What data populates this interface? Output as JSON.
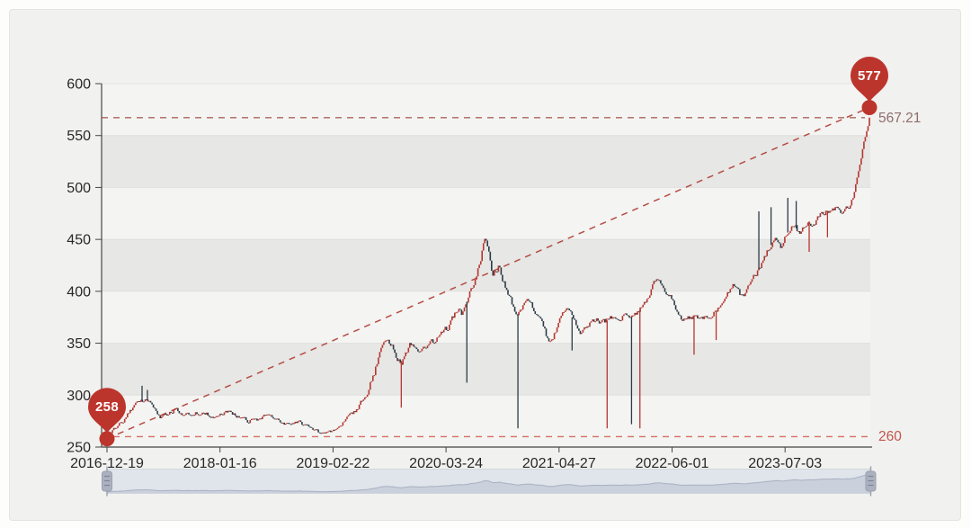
{
  "chart_data": {
    "type": "candlestick",
    "title": "",
    "xlabel": "",
    "ylabel": "",
    "x_ticks": [
      "2016-12-19",
      "2018-01-16",
      "2019-02-22",
      "2020-03-24",
      "2021-04-27",
      "2022-06-01",
      "2023-07-03"
    ],
    "y_ticks": [
      250,
      300,
      350,
      400,
      450,
      500,
      550,
      600
    ],
    "ylim": [
      250,
      600
    ],
    "grid": "split-bands",
    "legend": "none",
    "min_marker": {
      "label": "258",
      "value": 258,
      "pos": 0
    },
    "max_marker": {
      "label": "577",
      "value": 577,
      "pos": 1
    },
    "upper_line": {
      "value": 567.21,
      "label": "567.21"
    },
    "lower_line": {
      "value": 260,
      "label": "260"
    },
    "trend_line": {
      "from_pos": 0,
      "from_value": 258,
      "to_pos": 1,
      "to_value": 577
    },
    "keypoints": [
      [
        0.0,
        258
      ],
      [
        0.004,
        263
      ],
      [
        0.01,
        268
      ],
      [
        0.02,
        275
      ],
      [
        0.032,
        286
      ],
      [
        0.045,
        294
      ],
      [
        0.052,
        297
      ],
      [
        0.06,
        288
      ],
      [
        0.07,
        277
      ],
      [
        0.08,
        282
      ],
      [
        0.09,
        286
      ],
      [
        0.1,
        279
      ],
      [
        0.112,
        284
      ],
      [
        0.125,
        283
      ],
      [
        0.14,
        280
      ],
      [
        0.148,
        281
      ],
      [
        0.16,
        284
      ],
      [
        0.172,
        279
      ],
      [
        0.185,
        275
      ],
      [
        0.2,
        277
      ],
      [
        0.212,
        281
      ],
      [
        0.225,
        274
      ],
      [
        0.24,
        272
      ],
      [
        0.252,
        275
      ],
      [
        0.262,
        269
      ],
      [
        0.272,
        265
      ],
      [
        0.283,
        262
      ],
      [
        0.292,
        264
      ],
      [
        0.297,
        267
      ],
      [
        0.308,
        272
      ],
      [
        0.318,
        278
      ],
      [
        0.33,
        290
      ],
      [
        0.342,
        305
      ],
      [
        0.352,
        325
      ],
      [
        0.362,
        352
      ],
      [
        0.368,
        358
      ],
      [
        0.374,
        348
      ],
      [
        0.38,
        338
      ],
      [
        0.386,
        333
      ],
      [
        0.392,
        342
      ],
      [
        0.398,
        350
      ],
      [
        0.404,
        347
      ],
      [
        0.41,
        338
      ],
      [
        0.418,
        348
      ],
      [
        0.424,
        355
      ],
      [
        0.43,
        350
      ],
      [
        0.437,
        356
      ],
      [
        0.445,
        362
      ],
      [
        0.452,
        370
      ],
      [
        0.46,
        383
      ],
      [
        0.466,
        378
      ],
      [
        0.472,
        390
      ],
      [
        0.478,
        402
      ],
      [
        0.484,
        415
      ],
      [
        0.49,
        432
      ],
      [
        0.495,
        447
      ],
      [
        0.499,
        445
      ],
      [
        0.506,
        416
      ],
      [
        0.514,
        424
      ],
      [
        0.52,
        410
      ],
      [
        0.526,
        396
      ],
      [
        0.532,
        386
      ],
      [
        0.539,
        378
      ],
      [
        0.547,
        390
      ],
      [
        0.555,
        393
      ],
      [
        0.564,
        378
      ],
      [
        0.572,
        365
      ],
      [
        0.579,
        352
      ],
      [
        0.587,
        360
      ],
      [
        0.596,
        375
      ],
      [
        0.603,
        388
      ],
      [
        0.61,
        375
      ],
      [
        0.621,
        362
      ],
      [
        0.629,
        368
      ],
      [
        0.644,
        372
      ],
      [
        0.652,
        370
      ],
      [
        0.662,
        375
      ],
      [
        0.669,
        372
      ],
      [
        0.679,
        378
      ],
      [
        0.689,
        375
      ],
      [
        0.697,
        380
      ],
      [
        0.706,
        390
      ],
      [
        0.714,
        402
      ],
      [
        0.72,
        412
      ],
      [
        0.727,
        406
      ],
      [
        0.734,
        398
      ],
      [
        0.741,
        394
      ],
      [
        0.747,
        382
      ],
      [
        0.753,
        375
      ],
      [
        0.76,
        373
      ],
      [
        0.77,
        376
      ],
      [
        0.78,
        374
      ],
      [
        0.79,
        377
      ],
      [
        0.8,
        382
      ],
      [
        0.808,
        390
      ],
      [
        0.815,
        398
      ],
      [
        0.822,
        406
      ],
      [
        0.828,
        398
      ],
      [
        0.835,
        393
      ],
      [
        0.842,
        403
      ],
      [
        0.85,
        415
      ],
      [
        0.858,
        425
      ],
      [
        0.865,
        436
      ],
      [
        0.872,
        446
      ],
      [
        0.878,
        452
      ],
      [
        0.884,
        444
      ],
      [
        0.889,
        452
      ],
      [
        0.896,
        460
      ],
      [
        0.902,
        463
      ],
      [
        0.908,
        456
      ],
      [
        0.914,
        462
      ],
      [
        0.92,
        468
      ],
      [
        0.926,
        464
      ],
      [
        0.932,
        470
      ],
      [
        0.938,
        474
      ],
      [
        0.944,
        478
      ],
      [
        0.95,
        475
      ],
      [
        0.956,
        479
      ],
      [
        0.962,
        477
      ],
      [
        0.968,
        480
      ],
      [
        0.974,
        483
      ],
      [
        0.979,
        492
      ],
      [
        0.984,
        508
      ],
      [
        0.988,
        524
      ],
      [
        0.992,
        540
      ],
      [
        0.996,
        554
      ],
      [
        1.0,
        567.21
      ]
    ],
    "volatility": [
      [
        0,
        1.6
      ],
      [
        0.04,
        2.2
      ],
      [
        0.08,
        1.8
      ],
      [
        0.3,
        1.5
      ],
      [
        0.34,
        3.0
      ],
      [
        0.42,
        2.6
      ],
      [
        0.5,
        3.2
      ],
      [
        0.56,
        2.8
      ],
      [
        0.62,
        2.4
      ],
      [
        0.7,
        2.2
      ],
      [
        0.78,
        2.0
      ],
      [
        0.84,
        2.4
      ],
      [
        0.92,
        2.8
      ],
      [
        0.97,
        2.2
      ],
      [
        1,
        1.4
      ]
    ],
    "spikes": [
      [
        0.046,
        309,
        "down"
      ],
      [
        0.053,
        305,
        "down"
      ],
      [
        0.386,
        288,
        "up"
      ],
      [
        0.472,
        312,
        "down"
      ],
      [
        0.539,
        268,
        "down"
      ],
      [
        0.61,
        343,
        "down"
      ],
      [
        0.656,
        268,
        "up"
      ],
      [
        0.688,
        272,
        "down"
      ],
      [
        0.699,
        268,
        "up"
      ],
      [
        0.77,
        339,
        "up"
      ],
      [
        0.799,
        353,
        "up"
      ],
      [
        0.855,
        477,
        "down"
      ],
      [
        0.871,
        481,
        "down"
      ],
      [
        0.893,
        490,
        "down"
      ],
      [
        0.904,
        487,
        "down"
      ],
      [
        0.921,
        438,
        "up"
      ],
      [
        0.945,
        452,
        "up"
      ]
    ],
    "colors": {
      "up_candle": "#b5362e",
      "down_candle": "#2d3b46",
      "pin": "#bc352c",
      "trend_dash": "#b2443d",
      "upper_dash": "#a2554f",
      "lower_dash": "#d4685e",
      "upper_label_color": "#8d6e6b",
      "lower_label_color": "#c2564e",
      "axis_text": "#282828",
      "axis_line": "#454545",
      "band_light": "#f4f4f2",
      "band_dark": "#e7e7e5",
      "card_bg": "#f1f1ef",
      "page_bg": "#fdfdfc",
      "slider_track": "#e0e4eb",
      "slider_border": "#d2d6dc",
      "slider_area": "#cad0dc",
      "slider_line": "#a9b1c1",
      "slider_handle": "#abb1bf",
      "slider_handle_lines": "#7c8496",
      "slider_edge_line": "#9ba2b1"
    }
  }
}
